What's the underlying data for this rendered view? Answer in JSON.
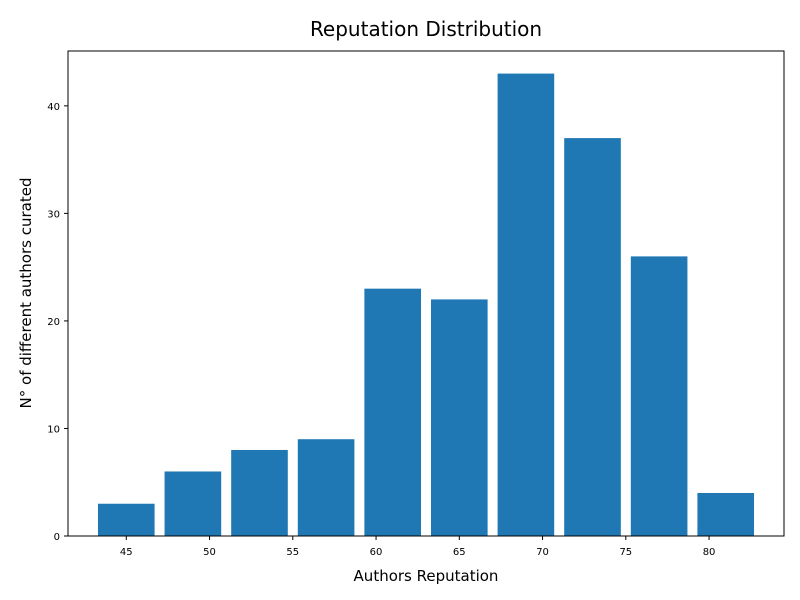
{
  "chart_data": {
    "type": "bar",
    "title": "Reputation Distribution",
    "xlabel": "Authors Reputation",
    "ylabel": "N° of different authors curated",
    "x_centers": [
      45.0,
      49.0,
      53.0,
      57.0,
      61.0,
      65.0,
      69.0,
      73.0,
      77.0,
      81.0
    ],
    "bar_width": 3.4,
    "values": [
      3,
      6,
      8,
      9,
      23,
      22,
      43,
      37,
      26,
      4
    ],
    "xlim": [
      41.5,
      84.5
    ],
    "ylim": [
      0,
      45.1
    ],
    "xticks": [
      45,
      50,
      55,
      60,
      65,
      70,
      75,
      80
    ],
    "yticks": [
      0,
      10,
      20,
      30,
      40
    ],
    "bar_color": "#1f77b4",
    "grid": false,
    "legend": false
  }
}
